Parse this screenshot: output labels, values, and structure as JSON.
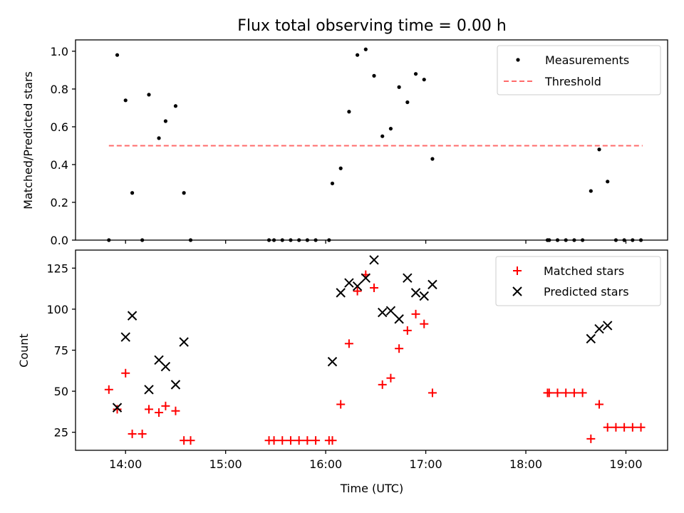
{
  "chart_data": [
    {
      "type": "scatter",
      "title": "Flux total observing time = 0.00 h",
      "xlabel": "",
      "ylabel": "Matched/Predicted stars",
      "ylim": [
        0.0,
        1.06
      ],
      "y_ticks": [
        0.0,
        0.2,
        0.4,
        0.6,
        0.8,
        1.0
      ],
      "y_tick_labels": [
        "0.0",
        "0.2",
        "0.4",
        "0.6",
        "0.8",
        "1.0"
      ],
      "grid": false,
      "legend_position": "top-right",
      "series": [
        {
          "name": "Measurements",
          "marker": "dot",
          "color": "#000000",
          "points": [
            [
              "13:50",
              0.0
            ],
            [
              "13:55",
              0.98
            ],
            [
              "14:00",
              0.74
            ],
            [
              "14:04",
              0.25
            ],
            [
              "14:10",
              0.0
            ],
            [
              "14:14",
              0.77
            ],
            [
              "14:20",
              0.54
            ],
            [
              "14:24",
              0.63
            ],
            [
              "14:30",
              0.71
            ],
            [
              "14:35",
              0.25
            ],
            [
              "14:39",
              0.0
            ],
            [
              "15:26",
              0.0
            ],
            [
              "15:29",
              0.0
            ],
            [
              "15:34",
              0.0
            ],
            [
              "15:39",
              0.0
            ],
            [
              "15:44",
              0.0
            ],
            [
              "15:49",
              0.0
            ],
            [
              "15:54",
              0.0
            ],
            [
              "16:02",
              0.0
            ],
            [
              "16:04",
              0.3
            ],
            [
              "16:09",
              0.38
            ],
            [
              "16:14",
              0.68
            ],
            [
              "16:19",
              0.98
            ],
            [
              "16:24",
              1.01
            ],
            [
              "16:29",
              0.87
            ],
            [
              "16:34",
              0.55
            ],
            [
              "16:39",
              0.59
            ],
            [
              "16:44",
              0.81
            ],
            [
              "16:49",
              0.73
            ],
            [
              "16:54",
              0.88
            ],
            [
              "16:59",
              0.85
            ],
            [
              "17:04",
              0.43
            ],
            [
              "18:13",
              0.0
            ],
            [
              "18:14",
              0.0
            ],
            [
              "18:19",
              0.0
            ],
            [
              "18:24",
              0.0
            ],
            [
              "18:29",
              0.0
            ],
            [
              "18:34",
              0.0
            ],
            [
              "18:39",
              0.26
            ],
            [
              "18:44",
              0.48
            ],
            [
              "18:49",
              0.31
            ],
            [
              "18:54",
              0.0
            ],
            [
              "18:59",
              0.0
            ],
            [
              "19:04",
              0.0
            ],
            [
              "19:09",
              0.0
            ]
          ]
        },
        {
          "name": "Threshold",
          "type": "line",
          "style": "dashed",
          "color": "#ff6b6b",
          "points": [
            [
              "13:50",
              0.5
            ],
            [
              "19:10",
              0.5
            ]
          ]
        }
      ]
    },
    {
      "type": "scatter",
      "title": "",
      "xlabel": "Time (UTC)",
      "ylabel": "Count",
      "ylim": [
        14,
        136
      ],
      "y_ticks": [
        25,
        50,
        75,
        100,
        125
      ],
      "y_tick_labels": [
        "25",
        "50",
        "75",
        "100",
        "125"
      ],
      "xlim": [
        "13:30",
        "19:25"
      ],
      "x_ticks": [
        "14:00",
        "15:00",
        "16:00",
        "17:00",
        "18:00",
        "19:00"
      ],
      "x_tick_labels": [
        "14:00",
        "15:00",
        "16:00",
        "17:00",
        "18:00",
        "19:00"
      ],
      "grid": false,
      "legend_position": "top-right",
      "series": [
        {
          "name": "Matched stars",
          "marker": "plus",
          "color": "#ff0000",
          "points": [
            [
              "13:50",
              51
            ],
            [
              "13:55",
              39
            ],
            [
              "14:00",
              61
            ],
            [
              "14:04",
              24
            ],
            [
              "14:10",
              24
            ],
            [
              "14:14",
              39
            ],
            [
              "14:20",
              37
            ],
            [
              "14:24",
              41
            ],
            [
              "14:30",
              38
            ],
            [
              "14:35",
              20
            ],
            [
              "14:39",
              20
            ],
            [
              "15:26",
              20
            ],
            [
              "15:29",
              20
            ],
            [
              "15:34",
              20
            ],
            [
              "15:39",
              20
            ],
            [
              "15:44",
              20
            ],
            [
              "15:49",
              20
            ],
            [
              "15:54",
              20
            ],
            [
              "16:02",
              20
            ],
            [
              "16:04",
              20
            ],
            [
              "16:09",
              42
            ],
            [
              "16:14",
              79
            ],
            [
              "16:19",
              111
            ],
            [
              "16:24",
              121
            ],
            [
              "16:29",
              113
            ],
            [
              "16:34",
              54
            ],
            [
              "16:39",
              58
            ],
            [
              "16:44",
              76
            ],
            [
              "16:49",
              87
            ],
            [
              "16:54",
              97
            ],
            [
              "16:59",
              91
            ],
            [
              "17:04",
              49
            ],
            [
              "18:13",
              49
            ],
            [
              "18:14",
              49
            ],
            [
              "18:19",
              49
            ],
            [
              "18:24",
              49
            ],
            [
              "18:29",
              49
            ],
            [
              "18:34",
              49
            ],
            [
              "18:39",
              21
            ],
            [
              "18:44",
              42
            ],
            [
              "18:49",
              28
            ],
            [
              "18:54",
              28
            ],
            [
              "18:59",
              28
            ],
            [
              "19:04",
              28
            ],
            [
              "19:09",
              28
            ]
          ]
        },
        {
          "name": "Predicted stars",
          "marker": "x",
          "color": "#000000",
          "points": [
            [
              "13:55",
              40
            ],
            [
              "14:00",
              83
            ],
            [
              "14:04",
              96
            ],
            [
              "14:14",
              51
            ],
            [
              "14:20",
              69
            ],
            [
              "14:24",
              65
            ],
            [
              "14:30",
              54
            ],
            [
              "14:35",
              80
            ],
            [
              "16:04",
              68
            ],
            [
              "16:09",
              110
            ],
            [
              "16:14",
              116
            ],
            [
              "16:19",
              114
            ],
            [
              "16:24",
              119
            ],
            [
              "16:29",
              130
            ],
            [
              "16:34",
              98
            ],
            [
              "16:39",
              99
            ],
            [
              "16:44",
              94
            ],
            [
              "16:49",
              119
            ],
            [
              "16:54",
              110
            ],
            [
              "16:59",
              108
            ],
            [
              "17:04",
              115
            ],
            [
              "18:39",
              82
            ],
            [
              "18:44",
              88
            ],
            [
              "18:49",
              90
            ]
          ]
        }
      ]
    }
  ]
}
